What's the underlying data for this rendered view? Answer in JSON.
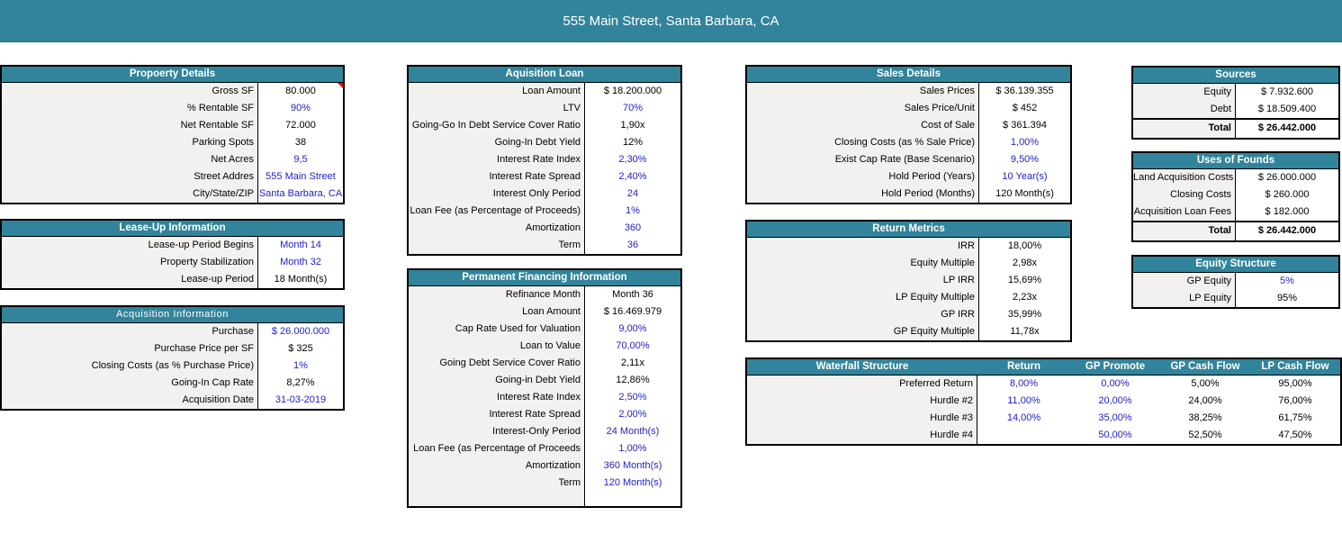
{
  "banner": {
    "title": "555 Main Street, Santa Barbara, CA"
  },
  "colors": {
    "header_teal": "#31849B",
    "input_blue": "#2222CC",
    "label_bg": "#F2F1EF",
    "comment_red": "#FF0000"
  },
  "property_details": {
    "title": "Propoerty Details",
    "rows": [
      {
        "label": "Gross SF",
        "value": "80.000",
        "comment": true
      },
      {
        "label": "% Rentable SF",
        "value": "90%",
        "blue": true
      },
      {
        "label": "Net Rentable SF",
        "value": "72.000"
      },
      {
        "label": "Parking Spots",
        "value": "38"
      },
      {
        "label": "Net Acres",
        "value": "9,5",
        "blue": true
      },
      {
        "label": "Street Addres",
        "value": "555 Main Street",
        "blue": true
      },
      {
        "label": "City/State/ZIP",
        "value": "Santa Barbara, CA",
        "blue": true
      }
    ]
  },
  "lease_up": {
    "title": "Lease-Up Information",
    "rows": [
      {
        "label": "Lease-up Period Begins",
        "value": "Month 14",
        "blue": true
      },
      {
        "label": "Property Stabilization",
        "value": "Month 32",
        "blue": true
      },
      {
        "label": "Lease-up Period",
        "value": "18 Month(s)"
      }
    ]
  },
  "acquisition_info": {
    "title": "Acquisition Information",
    "rows": [
      {
        "label": "Purchase",
        "value": "$ 26.000.000",
        "blue": true
      },
      {
        "label": "Purchase Price per SF",
        "value": "$ 325"
      },
      {
        "label": "Closing Costs (as % Purchase Price)",
        "value": "1%",
        "blue": true
      },
      {
        "label": "Going-In Cap Rate",
        "value": "8,27%"
      },
      {
        "label": "Acquisition Date",
        "value": "31-03-2019",
        "blue": true
      }
    ]
  },
  "acquisition_loan": {
    "title": "Aquisition Loan",
    "rows": [
      {
        "label": "Loan Amount",
        "value": "$ 18.200.000"
      },
      {
        "label": "LTV",
        "value": "70%",
        "blue": true
      },
      {
        "label": "Going-Go In Debt Service Cover Ratio",
        "value": "1,90x"
      },
      {
        "label": "Going-In Debt Yield",
        "value": "12%"
      },
      {
        "label": "Interest Rate Index",
        "value": "2,30%",
        "blue": true
      },
      {
        "label": "Interest Rate Spread",
        "value": "2,40%",
        "blue": true
      },
      {
        "label": "Interest Only Period",
        "value": "24",
        "blue": true
      },
      {
        "label": "Loan Fee (as Percentage of Proceeds)",
        "value": "1%",
        "blue": true
      },
      {
        "label": "Amortization",
        "value": "360",
        "blue": true
      },
      {
        "label": "Term",
        "value": "36",
        "blue": true
      }
    ]
  },
  "permanent_financing": {
    "title": "Permanent Financing Information",
    "rows": [
      {
        "label": "Refinance Month",
        "value": "Month 36"
      },
      {
        "label": "Loan Amount",
        "value": "$ 16.469.979"
      },
      {
        "label": "Cap Rate Used for Valuation",
        "value": "9,00%",
        "blue": true
      },
      {
        "label": "Loan to Value",
        "value": "70,00%",
        "blue": true
      },
      {
        "label": "Going Debt Service Cover Ratio",
        "value": "2,11x"
      },
      {
        "label": "Going-in Debt Yield",
        "value": "12,86%"
      },
      {
        "label": "Interest Rate Index",
        "value": "2,50%",
        "blue": true
      },
      {
        "label": "Interest Rate Spread",
        "value": "2,00%",
        "blue": true
      },
      {
        "label": "Interest-Only Period",
        "value": "24 Month(s)",
        "blue": true
      },
      {
        "label": "Loan Fee (as Percentage of Proceeds",
        "value": "1,00%",
        "blue": true
      },
      {
        "label": "Amortization",
        "value": "360 Month(s)",
        "blue": true
      },
      {
        "label": "Term",
        "value": "120 Month(s)",
        "blue": true
      },
      {
        "filler": true
      }
    ]
  },
  "sales_details": {
    "title": "Sales Details",
    "rows": [
      {
        "label": "Sales Prices",
        "value": "$ 36.139.355"
      },
      {
        "label": "Sales Price/Unit",
        "value": "$ 452"
      },
      {
        "label": "Cost of Sale",
        "value": "$ 361.394"
      },
      {
        "label": "Closing Costs (as % Sale Price)",
        "value": "1,00%",
        "blue": true
      },
      {
        "label": "Exist Cap Rate (Base Scenario)",
        "value": "9,50%",
        "blue": true
      },
      {
        "label": "Hold Period (Years)",
        "value": "10 Year(s)",
        "blue": true
      },
      {
        "label": "Hold Period (Months)",
        "value": "120 Month(s)"
      }
    ]
  },
  "return_metrics": {
    "title": "Return Metrics",
    "rows": [
      {
        "label": "IRR",
        "value": "18,00%"
      },
      {
        "label": "Equity Multiple",
        "value": "2,98x"
      },
      {
        "label": "LP IRR",
        "value": "15,69%"
      },
      {
        "label": "LP Equity Multiple",
        "value": "2,23x"
      },
      {
        "label": "GP  IRR",
        "value": "35,99%"
      },
      {
        "label": "GP Equity Multiple",
        "value": "11,78x"
      }
    ]
  },
  "waterfall": {
    "title": "Waterfall Structure",
    "columns": [
      "Return",
      "GP Promote",
      "GP Cash Flow",
      "LP Cash Flow"
    ],
    "rows": [
      {
        "label": "Preferred Return",
        "values": [
          "8,00%",
          "0,00%",
          "5,00%",
          "95,00%"
        ],
        "blue": [
          true,
          true,
          false,
          false
        ]
      },
      {
        "label": "Hurdle #2",
        "values": [
          "11,00%",
          "20,00%",
          "24,00%",
          "76,00%"
        ],
        "blue": [
          true,
          true,
          false,
          false
        ]
      },
      {
        "label": "Hurdle #3",
        "values": [
          "14,00%",
          "35,00%",
          "38,25%",
          "61,75%"
        ],
        "blue": [
          true,
          true,
          false,
          false
        ]
      },
      {
        "label": "Hurdle #4",
        "values": [
          "",
          "50,00%",
          "52,50%",
          "47,50%"
        ],
        "blue": [
          false,
          true,
          false,
          false
        ]
      }
    ]
  },
  "sources": {
    "title": "Sources",
    "rows": [
      {
        "label": "Equity",
        "value": "$ 7.932.600"
      },
      {
        "label": "Debt",
        "value": "$ 18.509.400"
      },
      {
        "label": "Total",
        "value": "$ 26.442.000",
        "total": true
      }
    ]
  },
  "uses_of_funds": {
    "title": "Uses of Founds",
    "rows": [
      {
        "label": "Land Acquisition Costs",
        "value": "$ 26.000.000"
      },
      {
        "label": "Closing Costs",
        "value": "$ 260.000"
      },
      {
        "label": "Acquisition Loan Fees",
        "value": "$ 182.000"
      },
      {
        "label": "Total",
        "value": "$ 26.442.000",
        "total": true
      }
    ]
  },
  "equity_structure": {
    "title": "Equity Structure",
    "rows": [
      {
        "label": "GP Equity",
        "value": "5%",
        "blue": true
      },
      {
        "label": "LP Equity",
        "value": "95%"
      }
    ]
  }
}
